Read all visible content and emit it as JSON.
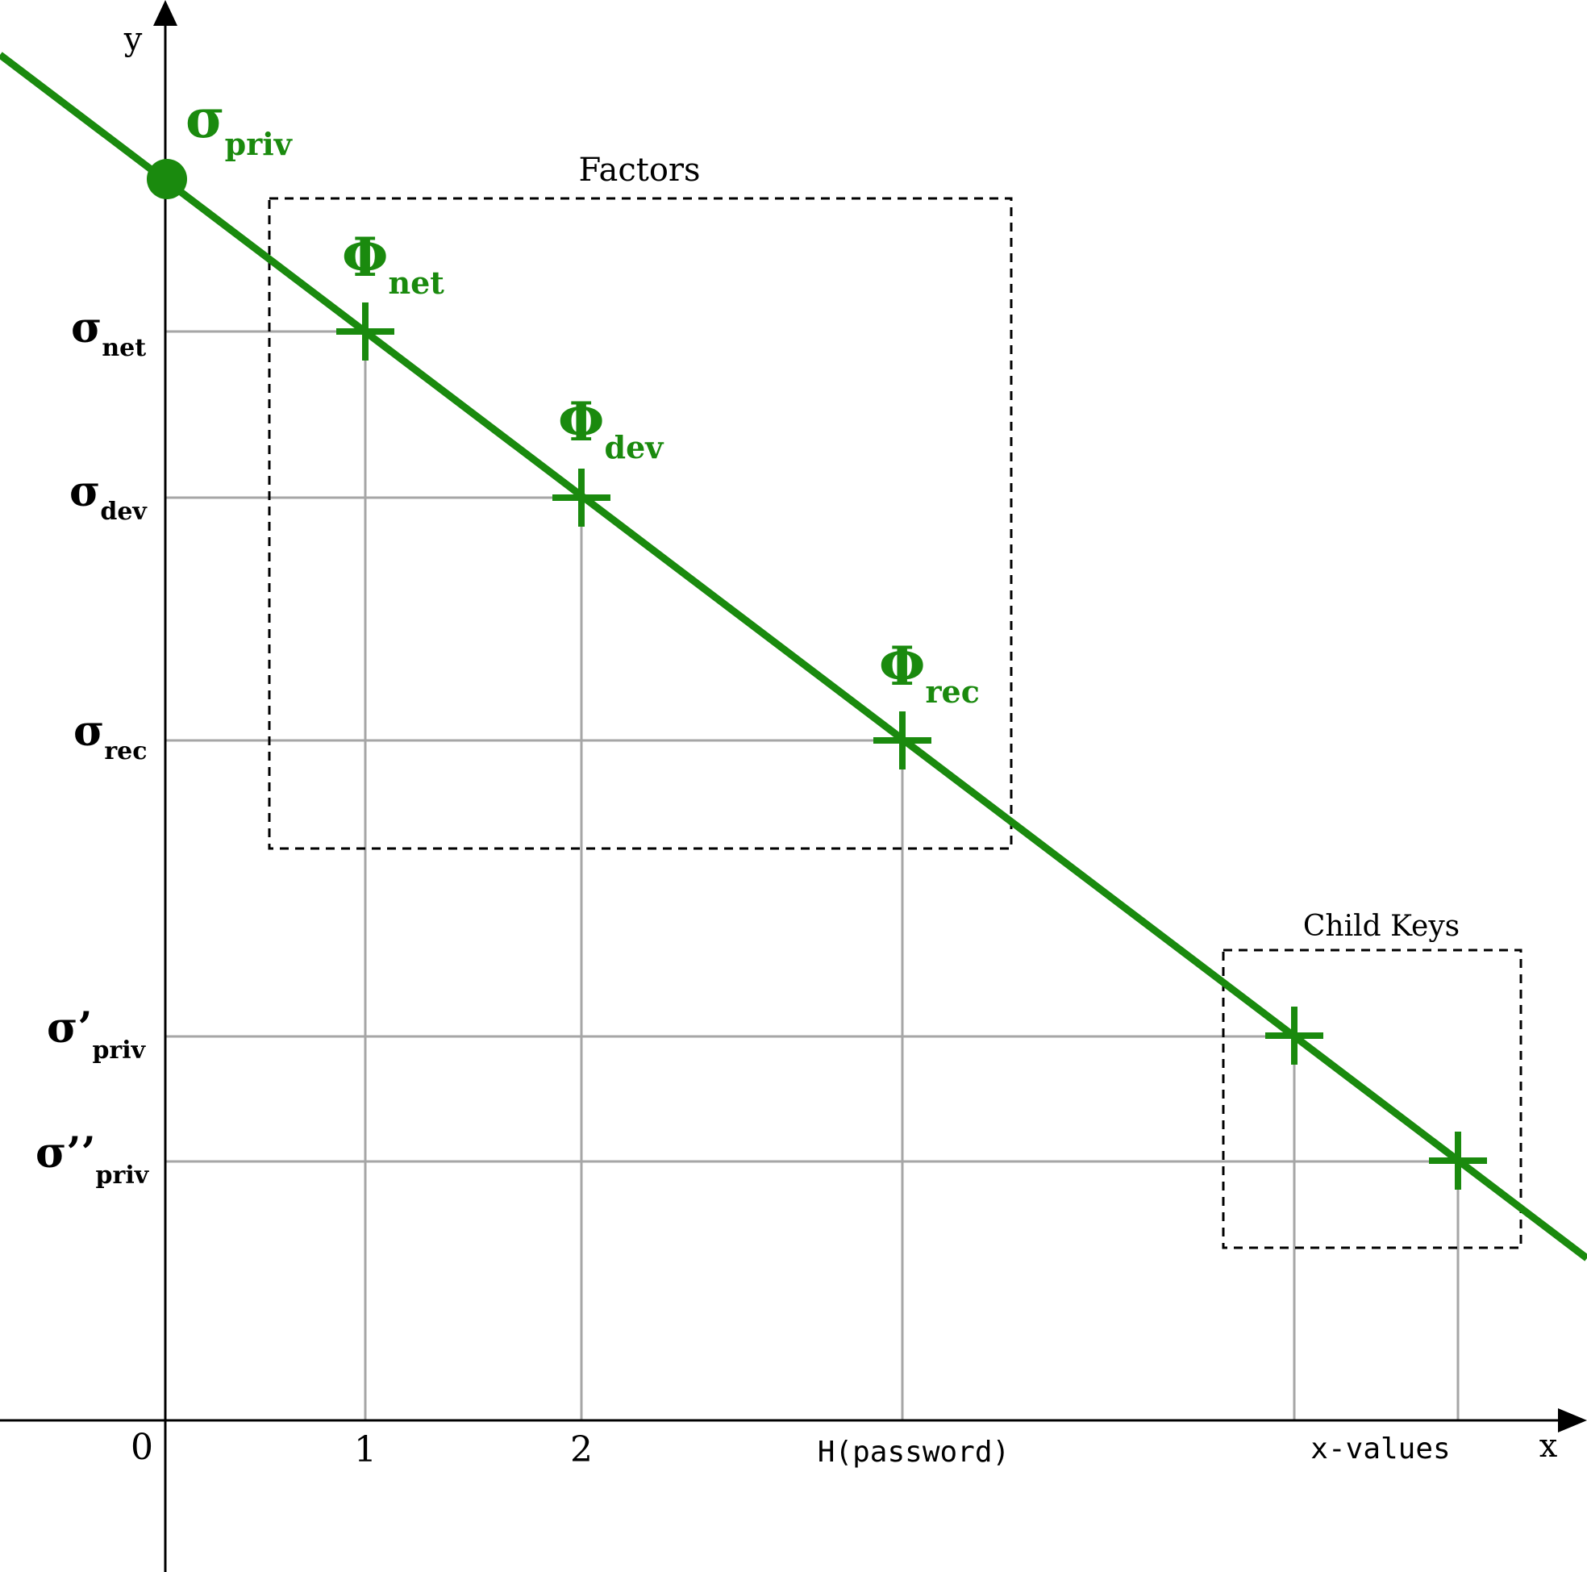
{
  "axes": {
    "x_label": "x",
    "y_label": "y",
    "origin_label": "0"
  },
  "x_ticks": {
    "one": "1",
    "two": "2",
    "password": "H(password)",
    "xvalues": "x-values"
  },
  "groups": {
    "factors": "Factors",
    "child_keys": "Child Keys"
  },
  "secret": {
    "sym": "σ",
    "sub": "priv"
  },
  "points": {
    "net": {
      "sym": "Φ",
      "sub": "net"
    },
    "dev": {
      "sym": "Φ",
      "sub": "dev"
    },
    "rec": {
      "sym": "Φ",
      "sub": "rec"
    }
  },
  "y_labels": {
    "net": {
      "sym": "σ",
      "sub": "net"
    },
    "dev": {
      "sym": "σ",
      "sub": "dev"
    },
    "rec": {
      "sym": "σ",
      "sub": "rec"
    },
    "priv1": {
      "sym": "σ’",
      "sub": "priv"
    },
    "priv2": {
      "sym": "σ’’",
      "sub": "priv"
    }
  },
  "colors": {
    "line": "#1a8a0e",
    "guide": "#a6a6a6",
    "axis": "#000000",
    "box": "#000000"
  }
}
